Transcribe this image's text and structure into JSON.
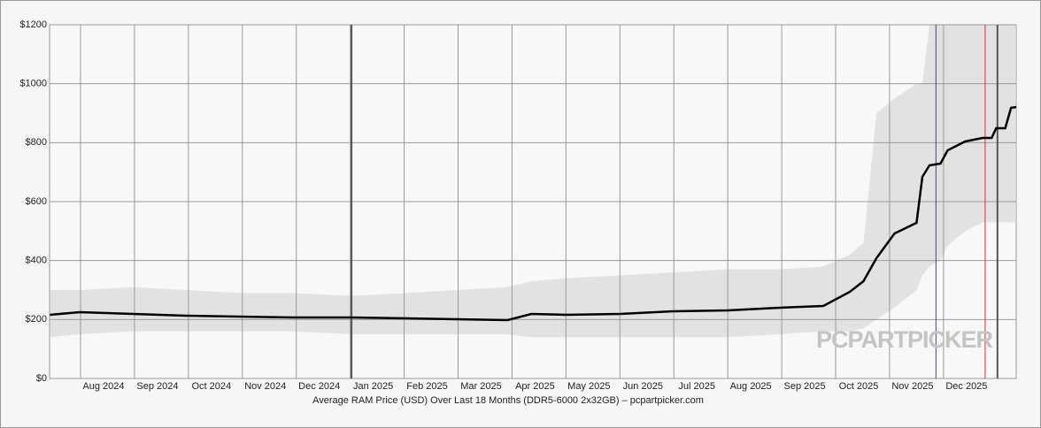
{
  "chart_data": {
    "type": "line",
    "title": "Average RAM Price (USD) Over Last 18 Months (DDR5-6000 2x32GB) – pcpartpicker.com",
    "watermark": "PCPARTPICKER",
    "xlim": [
      2024.5355,
      2026.029
    ],
    "ylim": [
      0,
      1200
    ],
    "grid": true,
    "xticks": [
      {
        "value": 2024.5833,
        "label": "Aug 2024"
      },
      {
        "value": 2024.6667,
        "label": "Sep 2024"
      },
      {
        "value": 2024.75,
        "label": "Oct 2024"
      },
      {
        "value": 2024.8333,
        "label": "Nov 2024"
      },
      {
        "value": 2024.9167,
        "label": "Dec 2024"
      },
      {
        "value": 2025.0,
        "label": "Jan 2025"
      },
      {
        "value": 2025.0833,
        "label": "Feb 2025"
      },
      {
        "value": 2025.1667,
        "label": "Mar 2025"
      },
      {
        "value": 2025.25,
        "label": "Apr 2025"
      },
      {
        "value": 2025.3333,
        "label": "May 2025"
      },
      {
        "value": 2025.4167,
        "label": "Jun 2025"
      },
      {
        "value": 2025.5,
        "label": "Jul 2025"
      },
      {
        "value": 2025.5833,
        "label": "Aug 2025"
      },
      {
        "value": 2025.6667,
        "label": "Sep 2025"
      },
      {
        "value": 2025.75,
        "label": "Oct 2025"
      },
      {
        "value": 2025.8333,
        "label": "Nov 2025"
      },
      {
        "value": 2025.9167,
        "label": "Dec 2025"
      }
    ],
    "yticks": [
      {
        "value": 0,
        "label": "$0"
      },
      {
        "value": 200,
        "label": "$200"
      },
      {
        "value": 400,
        "label": "$400"
      },
      {
        "value": 600,
        "label": "$600"
      },
      {
        "value": 800,
        "label": "$800"
      },
      {
        "value": 1000,
        "label": "$1000"
      },
      {
        "value": 1200,
        "label": "$1200"
      }
    ],
    "x": [
      2024.536,
      2024.582,
      2024.664,
      2024.746,
      2024.828,
      2024.91,
      2025.002,
      2025.088,
      2025.165,
      2025.243,
      2025.28,
      2025.334,
      2025.417,
      2025.499,
      2025.583,
      2025.663,
      2025.731,
      2025.772,
      2025.793,
      2025.813,
      2025.841,
      2025.875,
      2025.884,
      2025.895,
      2025.912,
      2025.923,
      2025.95,
      2025.977,
      2025.991,
      2025.998,
      2026.012,
      2026.021,
      2026.029
    ],
    "series": [
      {
        "color": "#000000",
        "values": [
          216,
          225,
          219,
          213,
          210,
          207,
          207,
          204,
          201,
          198,
          219,
          216,
          219,
          228,
          231,
          240,
          246,
          294,
          330,
          408,
          492,
          528,
          684,
          723,
          729,
          774,
          804,
          816,
          816,
          849,
          849,
          918,
          921
        ]
      }
    ],
    "band": {
      "color": "#d8d8d8",
      "low": [
        140,
        150,
        160,
        160,
        160,
        160,
        150,
        150,
        150,
        150,
        140,
        140,
        140,
        140,
        140,
        150,
        160,
        160,
        170,
        200,
        240,
        300,
        350,
        380,
        400,
        450,
        500,
        530,
        530,
        530,
        530,
        530,
        530
      ],
      "high": [
        300,
        300,
        310,
        300,
        290,
        290,
        280,
        290,
        300,
        310,
        330,
        340,
        350,
        360,
        370,
        370,
        380,
        420,
        460,
        900,
        950,
        1000,
        1000,
        1200,
        1200,
        1200,
        1200,
        1200,
        1200,
        1200,
        1200,
        1200,
        1200
      ]
    },
    "markers": [
      {
        "x": 2025.002,
        "color": "#555555"
      },
      {
        "x": 2025.905,
        "color": "#3344bb"
      },
      {
        "x": 2025.981,
        "color": "#cc3333"
      },
      {
        "x": 2026.0,
        "color": "#555555"
      }
    ]
  }
}
